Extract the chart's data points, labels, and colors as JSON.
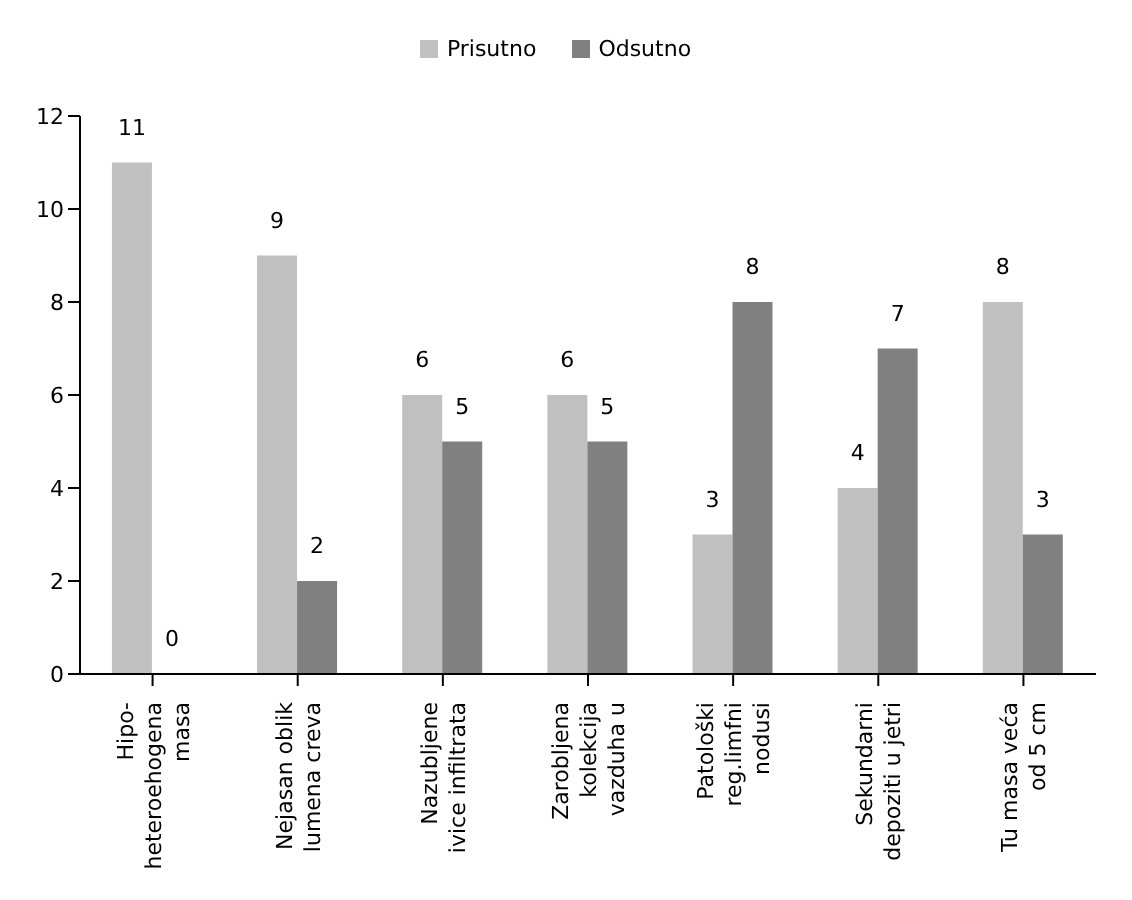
{
  "chart_data": {
    "type": "bar",
    "categories": [
      "Hipo-\nheteroehogena\nmasa",
      "Nejasan oblik\nlumena creva",
      "Nazubljene\nivice infiltrata",
      "Zarobljena\nkolekcija\nvazduha u",
      "Patološki\nreg.limfni\nnodusi",
      "Sekundarni\ndepoziti u jetri",
      "Tu masa veća\nod 5 cm"
    ],
    "series": [
      {
        "name": "Prisutno",
        "color": "#c0c0c0",
        "values": [
          11,
          9,
          6,
          6,
          3,
          4,
          8
        ]
      },
      {
        "name": "Odsutno",
        "color": "#808080",
        "values": [
          0,
          2,
          5,
          5,
          8,
          7,
          3
        ]
      }
    ],
    "ylim": [
      0,
      12
    ],
    "yticks": [
      0,
      2,
      4,
      6,
      8,
      10,
      12
    ],
    "data_labels": true,
    "legend": "top",
    "grid": false
  }
}
